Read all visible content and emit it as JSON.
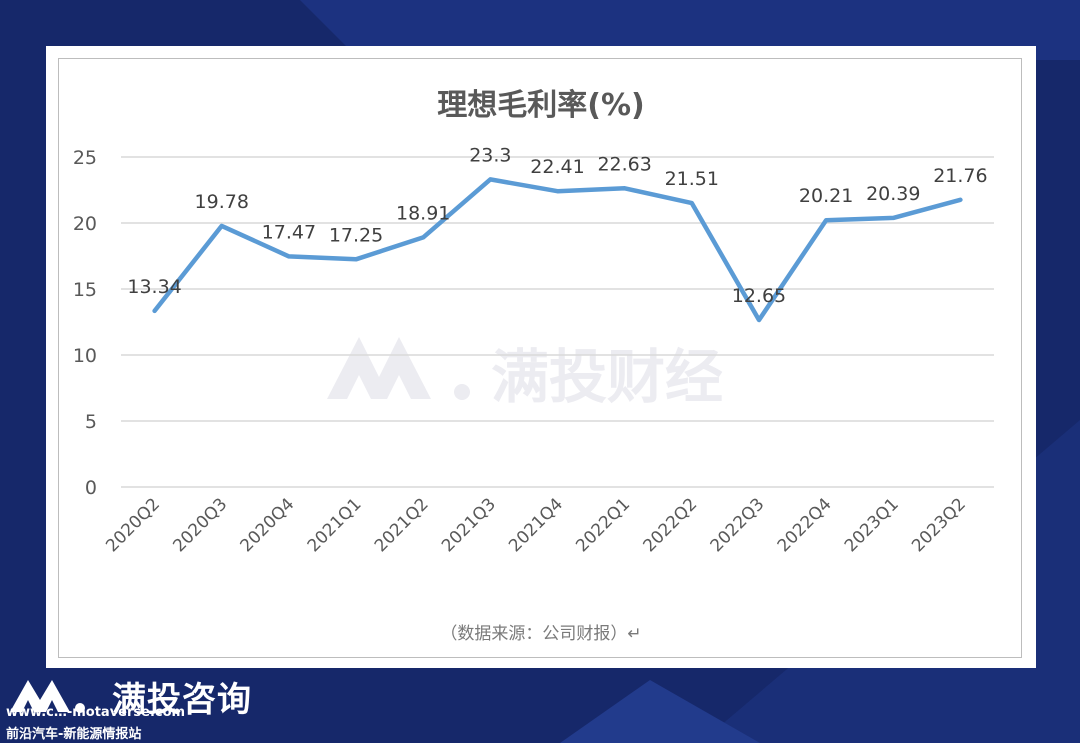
{
  "chart_data": {
    "type": "line",
    "title": "理想毛利率(%)",
    "categories": [
      "2020Q2",
      "2020Q3",
      "2020Q4",
      "2021Q1",
      "2021Q2",
      "2021Q3",
      "2021Q4",
      "2022Q1",
      "2022Q2",
      "2022Q3",
      "2022Q4",
      "2023Q1",
      "2023Q2"
    ],
    "series": [
      {
        "values": [
          13.34,
          19.78,
          17.47,
          17.25,
          18.91,
          23.3,
          22.41,
          22.63,
          21.51,
          12.65,
          20.21,
          20.39,
          21.76
        ]
      }
    ],
    "data_labels": [
      "13.34",
      "19.78",
      "17.47",
      "17.25",
      "18.91",
      "23.3",
      "22.41",
      "22.63",
      "21.51",
      "12.65",
      "20.21",
      "20.39",
      "21.76"
    ],
    "yticks": [
      "0",
      "5",
      "10",
      "15",
      "20",
      "25"
    ],
    "ylim": [
      0,
      25
    ],
    "grid": true,
    "legend": "none",
    "line_color": "#5b9bd5",
    "source_note": "（数据来源：公司财报）↵",
    "watermark": "满投财经"
  },
  "footer": {
    "brand": "满投咨询",
    "url": "www.c…-motaverse.com",
    "site": "前沿汽车-新能源情报站"
  },
  "colors": {
    "background": "#16286a",
    "card": "#ffffff",
    "grid": "#d9d9d9",
    "text": "#595959"
  }
}
